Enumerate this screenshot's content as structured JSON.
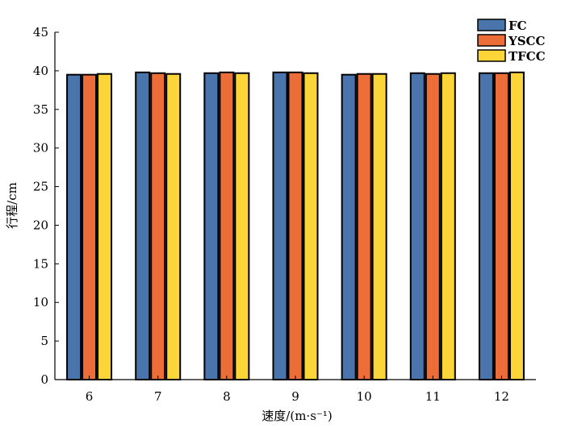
{
  "chart_data": {
    "type": "bar",
    "title": "",
    "xlabel": "速度/(m·s⁻¹)",
    "ylabel": "行程/cm",
    "categories": [
      "6",
      "7",
      "8",
      "9",
      "10",
      "11",
      "12"
    ],
    "ylim": [
      0,
      45
    ],
    "yticks": [
      "0",
      "5",
      "10",
      "15",
      "20",
      "25",
      "30",
      "35",
      "40",
      "45"
    ],
    "grid": false,
    "legend_position": "top-right",
    "series": [
      {
        "name": "FC",
        "color": "#4a74ac",
        "values": [
          39.5,
          39.8,
          39.7,
          39.8,
          39.5,
          39.7,
          39.7
        ]
      },
      {
        "name": "YSCC",
        "color": "#ec6d37",
        "values": [
          39.5,
          39.7,
          39.8,
          39.8,
          39.6,
          39.6,
          39.7
        ]
      },
      {
        "name": "TFCC",
        "color": "#fcd638",
        "values": [
          39.6,
          39.6,
          39.7,
          39.7,
          39.6,
          39.7,
          39.8
        ]
      }
    ]
  }
}
